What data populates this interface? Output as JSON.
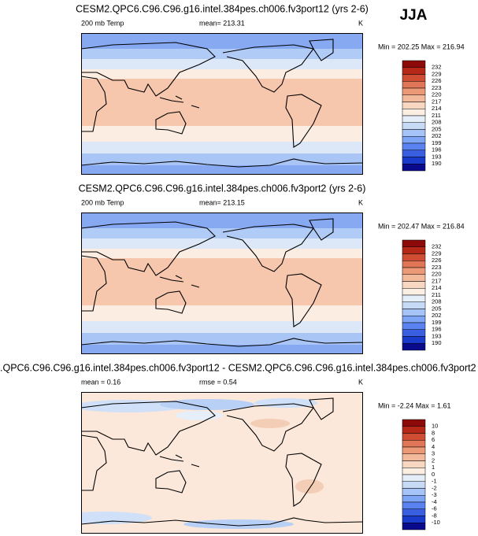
{
  "header": {
    "season": "JJA"
  },
  "panels": [
    {
      "title": "CESM2.QPC6.C96.C96.g16.intel.384pes.ch006.fv3port12 (yrs 2-6)",
      "left": "200 mb Temp",
      "center": "mean= 213.31",
      "right": "K",
      "minmax": "Min = 202.25 Max = 216.94",
      "levels": [
        232,
        229,
        226,
        223,
        220,
        217,
        214,
        211,
        208,
        205,
        202,
        199,
        196,
        193,
        190
      ],
      "colors": [
        "#8c0a0a",
        "#b52817",
        "#cf4d33",
        "#e07657",
        "#eb9977",
        "#f2b99b",
        "#f8d7c2",
        "#fbeee2",
        "#e4eef8",
        "#c6d9f5",
        "#a6c4f7",
        "#7ea4f5",
        "#5a82f0",
        "#3a5ee0",
        "#1a3acb",
        "#0a0a8c"
      ]
    },
    {
      "title": "CESM2.QPC6.C96.C96.g16.intel.384pes.ch006.fv3port2 (yrs 2-6)",
      "left": "200 mb Temp",
      "center": "mean= 213.15",
      "right": "K",
      "minmax": "Min = 202.47 Max = 216.84",
      "levels": [
        232,
        229,
        226,
        223,
        220,
        217,
        214,
        211,
        208,
        205,
        202,
        199,
        196,
        193,
        190
      ],
      "colors": [
        "#8c0a0a",
        "#b52817",
        "#cf4d33",
        "#e07657",
        "#eb9977",
        "#f2b99b",
        "#f8d7c2",
        "#fbeee2",
        "#e4eef8",
        "#c6d9f5",
        "#a6c4f7",
        "#7ea4f5",
        "#5a82f0",
        "#3a5ee0",
        "#1a3acb",
        "#0a0a8c"
      ]
    },
    {
      "title": ".QPC6.C96.C96.g16.intel.384pes.ch006.fv3port12 - CESM2.QPC6.C96.C96.g16.intel.384pes.ch006.fv3port2",
      "left": "mean =  0.16",
      "center": "rmse =  0.54",
      "right": "K",
      "minmax": "Min = -2.24 Max =  1.61",
      "levels": [
        10,
        8,
        6,
        4,
        3,
        2,
        1,
        0,
        -1,
        -2,
        -3,
        -4,
        -6,
        -8,
        -10
      ],
      "colors": [
        "#8c0a0a",
        "#b52817",
        "#cf4d33",
        "#e07657",
        "#eb9977",
        "#f2b99b",
        "#f8d7c2",
        "#fbeee2",
        "#e4eef8",
        "#c6d9f5",
        "#a6c4f7",
        "#7ea4f5",
        "#5a82f0",
        "#3a5ee0",
        "#1a3acb",
        "#0a0a8c"
      ]
    }
  ]
}
